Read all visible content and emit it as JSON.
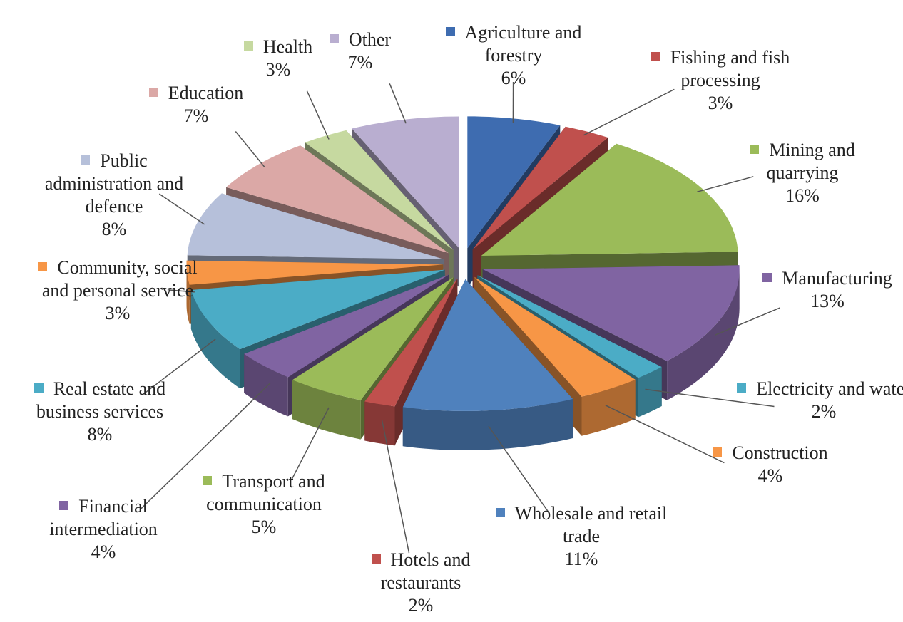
{
  "chart_data": {
    "type": "pie",
    "categories": [
      "Agriculture and forestry",
      "Fishing and fish processing",
      "Mining and quarrying",
      "Manufacturing",
      "Electricity and water",
      "Construction",
      "Wholesale and retail trade",
      "Hotels and restaurants",
      "Transport and communication",
      "Financial intermediation",
      "Real estate and business services",
      "Community, social and personal service",
      "Public administration and defence",
      "Education",
      "Health",
      "Other"
    ],
    "values": [
      6,
      3,
      16,
      13,
      2,
      4,
      11,
      2,
      5,
      4,
      8,
      3,
      8,
      7,
      3,
      7
    ],
    "value_labels": [
      "6%",
      "3%",
      "16%",
      "13%",
      "2%",
      "4%",
      "11%",
      "2%",
      "5%",
      "4%",
      "8%",
      "3%",
      "8%",
      "7%",
      "3%",
      "7%"
    ],
    "colors": [
      "#3e6cb0",
      "#c0504d",
      "#9bbb59",
      "#8064a2",
      "#4bacc6",
      "#f79646",
      "#4f81bd",
      "#c0504d",
      "#9bbb59",
      "#8064a2",
      "#4bacc6",
      "#f79646",
      "#b6c0da",
      "#dba8a6",
      "#c6d9a0",
      "#b9aed0"
    ]
  }
}
